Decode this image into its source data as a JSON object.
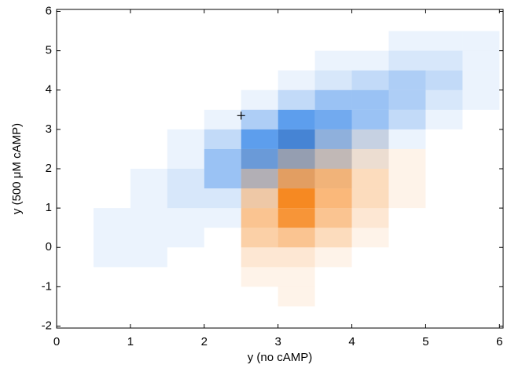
{
  "chart_data": {
    "type": "hist2d",
    "xlabel": "y (no cAMP)",
    "ylabel": "y (500 μM cAMP)",
    "xlim": [
      0,
      6.05
    ],
    "ylim": [
      -2.05,
      6.05
    ],
    "xticks": [
      0,
      1,
      2,
      3,
      4,
      5,
      6
    ],
    "yticks": [
      -2,
      -1,
      0,
      1,
      2,
      3,
      4,
      5,
      6
    ],
    "xbins": [
      0,
      0.5,
      1,
      1.5,
      2,
      2.5,
      3,
      3.5,
      4,
      4.5,
      5,
      5.5,
      6
    ],
    "ybins": [
      -2,
      -1.5,
      -1,
      -0.5,
      0,
      0.5,
      1,
      1.5,
      2,
      2.5,
      3,
      3.5,
      4,
      4.5,
      5,
      5.5,
      6
    ],
    "series": [
      {
        "color": "#1f78e6",
        "values": [
          [
            0,
            0,
            0,
            0,
            0,
            0,
            0,
            0,
            0,
            0,
            0,
            0
          ],
          [
            0,
            0,
            0,
            0,
            0,
            0,
            0,
            0,
            0,
            0,
            0,
            0
          ],
          [
            0,
            0,
            0,
            0,
            0,
            0,
            0,
            0,
            0,
            0,
            0,
            0
          ],
          [
            0,
            1,
            1,
            0,
            0,
            0,
            0,
            0,
            0,
            0,
            0,
            0
          ],
          [
            0,
            1,
            1,
            1,
            0,
            0,
            0,
            0,
            0,
            0,
            0,
            0
          ],
          [
            0,
            1,
            1,
            1,
            1,
            0,
            0,
            0,
            0,
            0,
            0,
            0
          ],
          [
            0,
            0,
            1,
            2,
            2,
            1,
            0,
            0,
            0,
            0,
            0,
            0
          ],
          [
            0,
            0,
            1,
            2,
            5,
            5,
            3,
            1,
            0,
            0,
            0,
            0
          ],
          [
            0,
            0,
            0,
            1,
            5,
            8,
            7,
            4,
            1,
            0,
            0,
            0
          ],
          [
            0,
            0,
            0,
            1,
            3,
            8,
            10,
            6,
            3,
            1,
            0,
            0
          ],
          [
            0,
            0,
            0,
            0,
            1,
            4,
            8,
            7,
            5,
            3,
            1,
            0
          ],
          [
            0,
            0,
            0,
            0,
            0,
            1,
            3,
            5,
            5,
            4,
            2,
            1
          ],
          [
            0,
            0,
            0,
            0,
            0,
            0,
            1,
            2,
            3,
            4,
            3,
            1
          ],
          [
            0,
            0,
            0,
            0,
            0,
            0,
            0,
            1,
            1,
            2,
            2,
            1
          ],
          [
            0,
            0,
            0,
            0,
            0,
            0,
            0,
            0,
            0,
            1,
            1,
            1
          ],
          [
            0,
            0,
            0,
            0,
            0,
            0,
            0,
            0,
            0,
            0,
            0,
            0
          ]
        ]
      },
      {
        "color": "#f57c0a",
        "values": [
          [
            0,
            0,
            0,
            0,
            0,
            0,
            0,
            0,
            0,
            0,
            0,
            0
          ],
          [
            0,
            0,
            0,
            0,
            0,
            0,
            1,
            0,
            0,
            0,
            0,
            0
          ],
          [
            0,
            0,
            0,
            0,
            0,
            1,
            1,
            0,
            0,
            0,
            0,
            0
          ],
          [
            0,
            0,
            0,
            0,
            0,
            2,
            2,
            1,
            0,
            0,
            0,
            0
          ],
          [
            0,
            0,
            0,
            0,
            0,
            4,
            5,
            3,
            1,
            0,
            0,
            0
          ],
          [
            0,
            0,
            0,
            0,
            0,
            5,
            9,
            5,
            2,
            0,
            0,
            0
          ],
          [
            0,
            0,
            0,
            0,
            0,
            4,
            10,
            6,
            3,
            1,
            0,
            0
          ],
          [
            0,
            0,
            0,
            0,
            0,
            3,
            7,
            6,
            3,
            1,
            0,
            0
          ],
          [
            0,
            0,
            0,
            0,
            0,
            1,
            3,
            3,
            2,
            1,
            0,
            0
          ],
          [
            0,
            0,
            0,
            0,
            0,
            0,
            1,
            1,
            1,
            0,
            0,
            0
          ],
          [
            0,
            0,
            0,
            0,
            0,
            0,
            0,
            0,
            0,
            0,
            0,
            0
          ],
          [
            0,
            0,
            0,
            0,
            0,
            0,
            0,
            0,
            0,
            0,
            0,
            0
          ],
          [
            0,
            0,
            0,
            0,
            0,
            0,
            0,
            0,
            0,
            0,
            0,
            0
          ],
          [
            0,
            0,
            0,
            0,
            0,
            0,
            0,
            0,
            0,
            0,
            0,
            0
          ],
          [
            0,
            0,
            0,
            0,
            0,
            0,
            0,
            0,
            0,
            0,
            0,
            0
          ],
          [
            0,
            0,
            0,
            0,
            0,
            0,
            0,
            0,
            0,
            0,
            0,
            0
          ]
        ]
      }
    ],
    "marker": {
      "x": 2.5,
      "y": 3.35
    }
  }
}
